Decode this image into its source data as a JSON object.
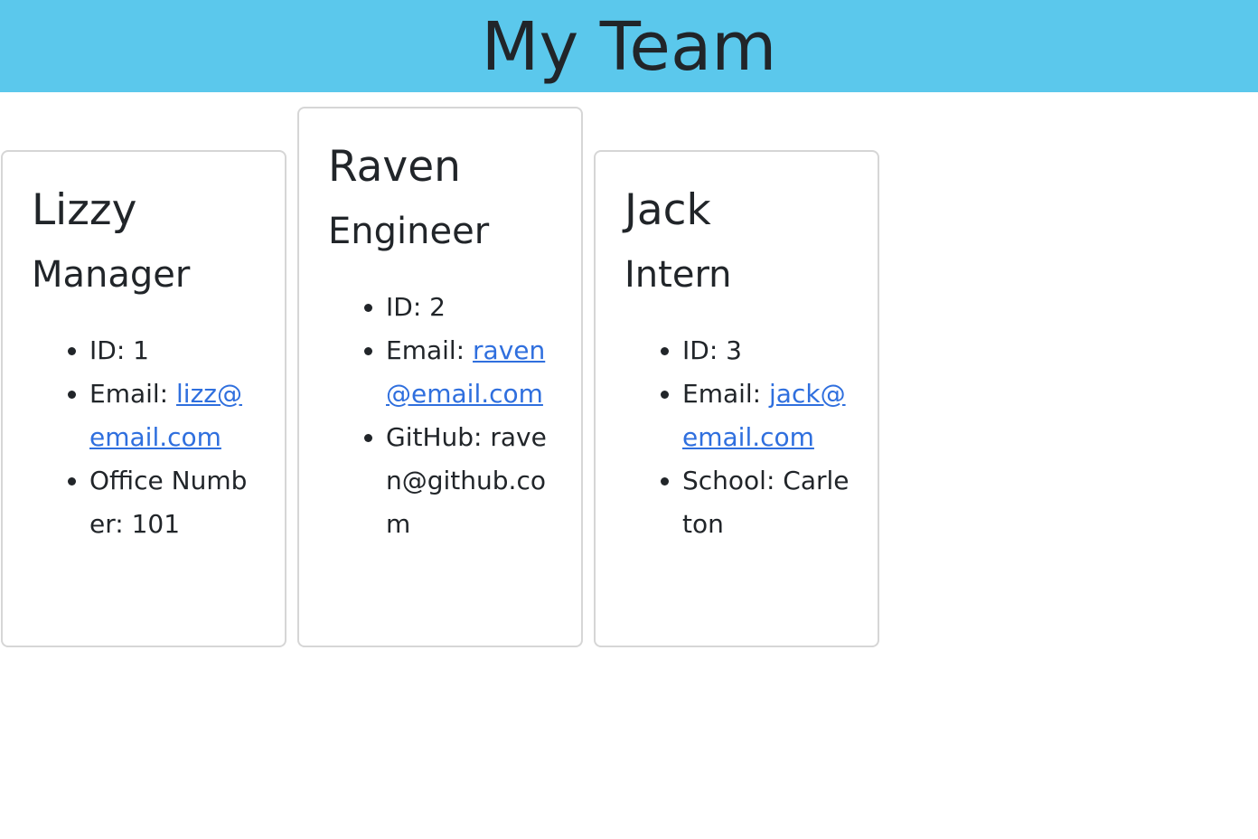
{
  "header": {
    "title": "My Team"
  },
  "team": [
    {
      "name": "Lizzy",
      "role": "Manager",
      "id_label": "ID: 1",
      "email_prefix": "Email: ",
      "email": "lizz@email.com",
      "extra": "Office Number: 101"
    },
    {
      "name": "Raven",
      "role": "Engineer",
      "id_label": "ID: 2",
      "email_prefix": "Email: ",
      "email": "raven@email.com",
      "extra": "GitHub: raven@github.com"
    },
    {
      "name": "Jack",
      "role": "Intern",
      "id_label": "ID: 3",
      "email_prefix": "Email: ",
      "email": "jack@email.com",
      "extra": "School: Carleton"
    }
  ],
  "colors": {
    "header_bg": "#5bc8ec",
    "link": "#2f6fde",
    "card_border": "#d6d6d6"
  }
}
